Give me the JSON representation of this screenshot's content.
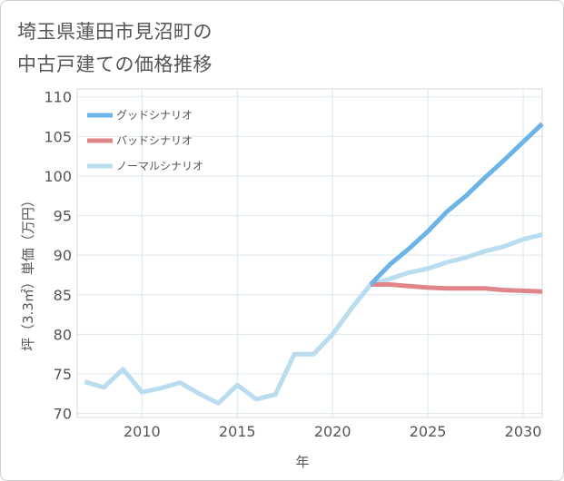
{
  "page": {
    "title_line1": "埼玉県蓮田市見沼町の",
    "title_line2": "中古戸建ての価格推移"
  },
  "chart_data": {
    "type": "line",
    "title": "埼玉県蓮田市見沼町の中古戸建ての価格推移",
    "xlabel": "年",
    "ylabel": "坪（3.3㎡）単価（万円）",
    "xlim": [
      2006.6,
      2031
    ],
    "ylim": [
      69.5,
      111
    ],
    "x_ticks": [
      2010,
      2015,
      2020,
      2025,
      2030
    ],
    "y_ticks": [
      70,
      75,
      80,
      85,
      90,
      95,
      100,
      105,
      110
    ],
    "grid": true,
    "legend_position": "top-left",
    "series": [
      {
        "name": "グッドシナリオ",
        "color": "#6cb4e8",
        "x": [
          2022,
          2023,
          2024,
          2025,
          2026,
          2027,
          2028,
          2029,
          2030,
          2031
        ],
        "values": [
          86.3,
          88.8,
          90.8,
          93.0,
          95.5,
          97.5,
          99.8,
          102.0,
          104.3,
          106.6
        ]
      },
      {
        "name": "バッドシナリオ",
        "color": "#e0868b",
        "x": [
          2022,
          2023,
          2024,
          2025,
          2026,
          2027,
          2028,
          2029,
          2030,
          2031
        ],
        "values": [
          86.3,
          86.3,
          86.1,
          85.9,
          85.8,
          85.8,
          85.8,
          85.6,
          85.5,
          85.4
        ]
      },
      {
        "name": "ノーマルシナリオ",
        "color": "#b9dcee",
        "x": [
          2007,
          2008,
          2009,
          2010,
          2011,
          2012,
          2013,
          2014,
          2015,
          2016,
          2017,
          2018,
          2019,
          2020,
          2021,
          2022,
          2023,
          2024,
          2025,
          2026,
          2027,
          2028,
          2029,
          2030,
          2031
        ],
        "values": [
          74.0,
          73.3,
          75.6,
          72.7,
          73.2,
          73.9,
          72.5,
          71.3,
          73.6,
          71.8,
          72.4,
          77.5,
          77.5,
          80.0,
          83.3,
          86.3,
          87.0,
          87.8,
          88.3,
          89.1,
          89.7,
          90.5,
          91.1,
          92.0,
          92.6
        ]
      }
    ]
  }
}
